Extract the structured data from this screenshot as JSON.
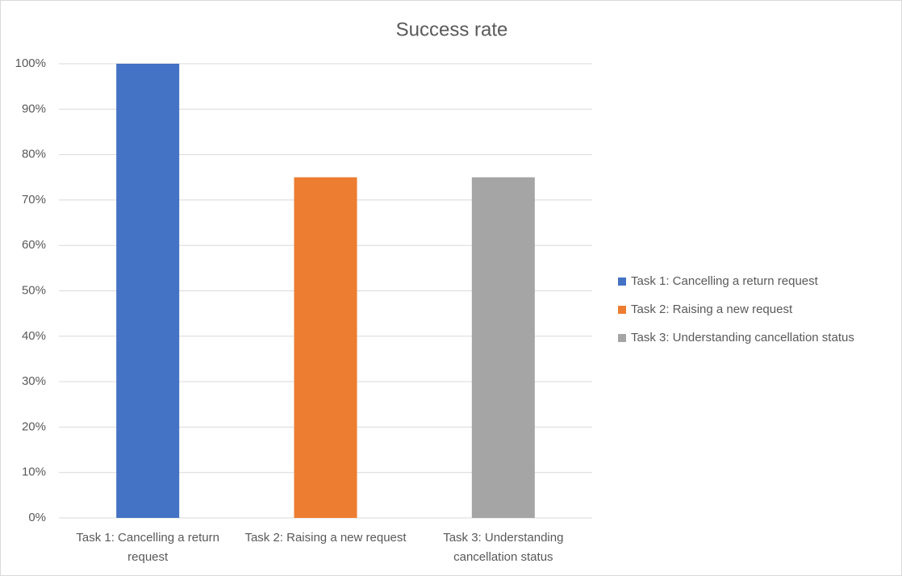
{
  "chart_data": {
    "type": "bar",
    "title": "Success rate",
    "categories": [
      "Task 1: Cancelling a return request",
      "Task 2: Raising a new request",
      "Task 3: Understanding cancellation status"
    ],
    "series": [
      {
        "name": "Task 1: Cancelling a return request",
        "color": "#4472c4",
        "values": [
          100,
          null,
          null
        ]
      },
      {
        "name": "Task 2: Raising a new request",
        "color": "#ed7d31",
        "values": [
          null,
          75,
          null
        ]
      },
      {
        "name": "Task 3: Understanding cancellation status",
        "color": "#a5a5a5",
        "values": [
          null,
          null,
          75
        ]
      }
    ],
    "ylim": [
      0,
      100
    ],
    "yticks": [
      {
        "value": 0,
        "label": "0%"
      },
      {
        "value": 10,
        "label": "10%"
      },
      {
        "value": 20,
        "label": "20%"
      },
      {
        "value": 30,
        "label": "30%"
      },
      {
        "value": 40,
        "label": "40%"
      },
      {
        "value": 50,
        "label": "50%"
      },
      {
        "value": 60,
        "label": "60%"
      },
      {
        "value": 70,
        "label": "70%"
      },
      {
        "value": 80,
        "label": "80%"
      },
      {
        "value": 90,
        "label": "90%"
      },
      {
        "value": 100,
        "label": "100%"
      }
    ],
    "grid": true,
    "legend": "right"
  }
}
